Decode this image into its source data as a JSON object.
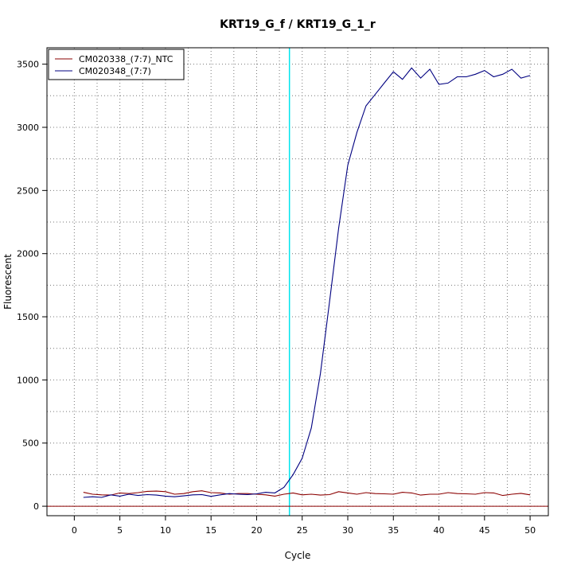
{
  "chart_data": {
    "type": "line",
    "title": "KRT19_G_f / KRT19_G_1_r",
    "xlabel": "Cycle",
    "ylabel": "Fluorescent",
    "xlim": [
      -3,
      52
    ],
    "ylim": [
      -75,
      3630
    ],
    "x_ticks": [
      0,
      5,
      10,
      15,
      20,
      25,
      30,
      35,
      40,
      45,
      50
    ],
    "y_ticks": [
      0,
      500,
      1000,
      1500,
      2000,
      2500,
      3000,
      3500
    ],
    "x_ticks_minor": [
      2.5,
      7.5,
      12.5,
      17.5,
      22.5,
      27.5,
      32.5,
      37.5,
      42.5,
      47.5
    ],
    "y_ticks_minor": [
      250,
      750,
      1250,
      1750,
      2250,
      2750,
      3250
    ],
    "grid": true,
    "legend_position": "top-left",
    "threshold_line": {
      "x": 23.6,
      "color": "#00e5ee"
    },
    "baseline_line": {
      "y": 0,
      "color": "#8b0000"
    },
    "series": [
      {
        "name": "CM020338_(7:7)_NTC",
        "color": "#8b0000",
        "x": [
          1,
          2,
          3,
          4,
          5,
          6,
          7,
          8,
          9,
          10,
          11,
          12,
          13,
          14,
          15,
          16,
          17,
          18,
          19,
          20,
          21,
          22,
          23,
          24,
          25,
          26,
          27,
          28,
          29,
          30,
          31,
          32,
          33,
          34,
          35,
          36,
          37,
          38,
          39,
          40,
          41,
          42,
          43,
          44,
          45,
          46,
          47,
          48,
          49,
          50
        ],
        "y": [
          110,
          95,
          90,
          88,
          105,
          100,
          108,
          118,
          120,
          115,
          95,
          100,
          115,
          122,
          108,
          105,
          95,
          100,
          100,
          95,
          90,
          80,
          95,
          105,
          90,
          95,
          88,
          92,
          115,
          105,
          95,
          108,
          100,
          98,
          95,
          110,
          105,
          88,
          95,
          95,
          108,
          100,
          98,
          95,
          108,
          105,
          85,
          95,
          102,
          90
        ]
      },
      {
        "name": "CM020348_(7:7)",
        "color": "#000080",
        "x": [
          1,
          2,
          3,
          4,
          5,
          6,
          7,
          8,
          9,
          10,
          11,
          12,
          13,
          14,
          15,
          16,
          17,
          18,
          19,
          20,
          21,
          22,
          23,
          24,
          25,
          26,
          27,
          28,
          29,
          30,
          31,
          32,
          33,
          34,
          35,
          36,
          37,
          38,
          39,
          40,
          41,
          42,
          43,
          44,
          45,
          46,
          47,
          48,
          49,
          50
        ],
        "y": [
          70,
          75,
          70,
          90,
          80,
          95,
          85,
          92,
          88,
          80,
          75,
          82,
          90,
          92,
          78,
          90,
          100,
          95,
          92,
          98,
          110,
          105,
          150,
          250,
          380,
          620,
          1050,
          1620,
          2200,
          2700,
          2960,
          3170,
          3260,
          3350,
          3440,
          3380,
          3470,
          3390,
          3460,
          3340,
          3350,
          3400,
          3400,
          3420,
          3450,
          3400,
          3420,
          3460,
          3390,
          3410
        ]
      }
    ]
  }
}
